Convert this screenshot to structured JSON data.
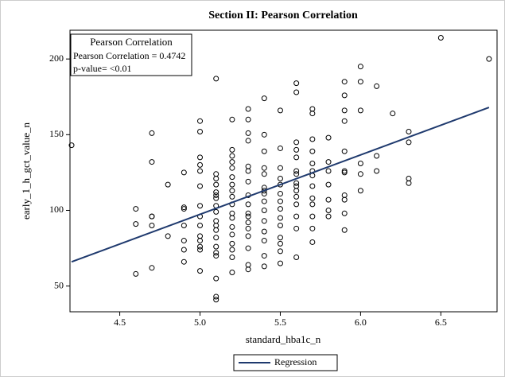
{
  "chart_data": {
    "type": "scatter",
    "title": "Section II: Pearson Correlation",
    "x_label": "standard_hba1c_n",
    "y_label": "early_1_h_gct_value_n",
    "inset": {
      "title": "Pearson Correlation",
      "lines": [
        "Pearson Correlation = 0.4742",
        "p-value= <0.01"
      ]
    },
    "series": [
      {
        "color": "#000000",
        "x": [
          4.2,
          4.6,
          4.6,
          4.6,
          4.7,
          4.7,
          4.7,
          4.7,
          4.7,
          4.7,
          4.8,
          4.8,
          4.9,
          4.9,
          4.9,
          4.9,
          4.9,
          4.9,
          4.9,
          5,
          5,
          5,
          5,
          5,
          5,
          5,
          5,
          5,
          5,
          5,
          5,
          5,
          5,
          5.1,
          5.1,
          5.1,
          5.1,
          5.1,
          5.1,
          5.1,
          5.1,
          5.1,
          5.1,
          5.1,
          5.1,
          5.1,
          5.1,
          5.1,
          5.1,
          5.1,
          5.1,
          5.1,
          5.2,
          5.2,
          5.2,
          5.2,
          5.2,
          5.2,
          5.2,
          5.2,
          5.2,
          5.2,
          5.2,
          5.2,
          5.2,
          5.2,
          5.2,
          5.2,
          5.2,
          5.2,
          5.3,
          5.3,
          5.3,
          5.3,
          5.3,
          5.3,
          5.3,
          5.3,
          5.3,
          5.3,
          5.3,
          5.3,
          5.3,
          5.3,
          5.3,
          5.3,
          5.3,
          5.4,
          5.4,
          5.4,
          5.4,
          5.4,
          5.4,
          5.4,
          5.4,
          5.4,
          5.4,
          5.4,
          5.4,
          5.4,
          5.4,
          5.4,
          5.5,
          5.5,
          5.5,
          5.5,
          5.5,
          5.5,
          5.5,
          5.5,
          5.5,
          5.5,
          5.5,
          5.5,
          5.5,
          5.5,
          5.6,
          5.6,
          5.6,
          5.6,
          5.6,
          5.6,
          5.6,
          5.6,
          5.6,
          5.6,
          5.6,
          5.6,
          5.6,
          5.6,
          5.6,
          5.7,
          5.7,
          5.7,
          5.7,
          5.7,
          5.7,
          5.7,
          5.7,
          5.7,
          5.7,
          5.7,
          5.7,
          5.7,
          5.8,
          5.8,
          5.8,
          5.8,
          5.8,
          5.8,
          5.8,
          5.9,
          5.9,
          5.9,
          5.9,
          5.9,
          5.9,
          5.9,
          5.9,
          5.9,
          5.9,
          5.9,
          6,
          6,
          6,
          6,
          6,
          6,
          6.1,
          6.1,
          6.1,
          6.2,
          6.3,
          6.3,
          6.3,
          6.3,
          6.5,
          6.8
        ],
        "values": [
          143,
          101,
          91,
          58,
          151,
          132,
          96,
          96,
          90,
          62,
          117,
          83,
          125,
          102,
          101,
          90,
          80,
          74,
          66,
          159,
          152,
          135,
          130,
          126,
          116,
          103,
          96,
          90,
          83,
          80,
          76,
          74,
          60,
          187,
          124,
          121,
          117,
          112,
          110,
          108,
          103,
          99,
          93,
          90,
          87,
          82,
          76,
          72,
          70,
          55,
          43,
          41,
          160,
          140,
          136,
          132,
          128,
          122,
          117,
          113,
          109,
          104,
          98,
          95,
          89,
          84,
          78,
          74,
          69,
          59,
          167,
          160,
          151,
          146,
          129,
          126,
          119,
          110,
          104,
          98,
          96,
          92,
          88,
          83,
          75,
          64,
          61,
          174,
          150,
          139,
          128,
          124,
          115,
          113,
          111,
          106,
          100,
          93,
          86,
          80,
          70,
          63,
          166,
          141,
          128,
          121,
          117,
          111,
          106,
          101,
          95,
          90,
          82,
          78,
          73,
          65,
          184,
          178,
          145,
          140,
          135,
          126,
          124,
          118,
          116,
          113,
          109,
          104,
          96,
          88,
          69,
          167,
          164,
          147,
          139,
          131,
          126,
          123,
          116,
          108,
          104,
          96,
          88,
          79,
          148,
          132,
          126,
          117,
          107,
          100,
          96,
          185,
          176,
          166,
          159,
          139,
          126,
          125,
          110,
          107,
          98,
          87,
          195,
          185,
          166,
          131,
          124,
          113,
          182,
          136,
          126,
          164,
          152,
          145,
          121,
          118,
          214,
          200
        ]
      }
    ],
    "regression": {
      "name": "Regression",
      "color": "#1f3a6e",
      "x": [
        4.2,
        6.8
      ],
      "values": [
        66,
        168
      ]
    },
    "xlim": [
      4.19,
      6.85
    ],
    "ylim": [
      33,
      219
    ],
    "xticks": [
      4.5,
      {
        "value": 5,
        "label": "5.0"
      },
      5.5,
      {
        "value": 6,
        "label": "6.0"
      },
      6.5
    ],
    "yticks": [
      50,
      100,
      150,
      200
    ]
  }
}
